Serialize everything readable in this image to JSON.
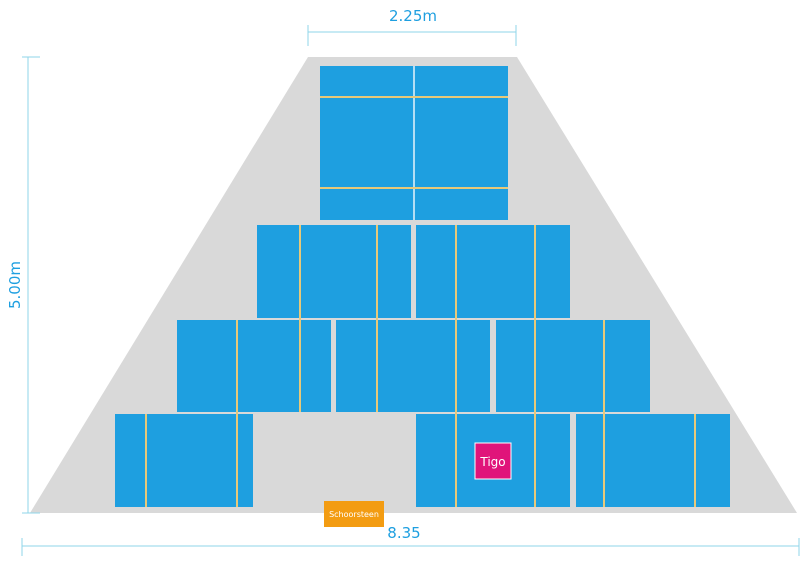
{
  "dimensions": {
    "top": "2.25m",
    "left": "5.00m",
    "bottom": "8.35"
  },
  "labels": {
    "tigo": "Tigo",
    "chimney": "Schoorsteen"
  }
}
